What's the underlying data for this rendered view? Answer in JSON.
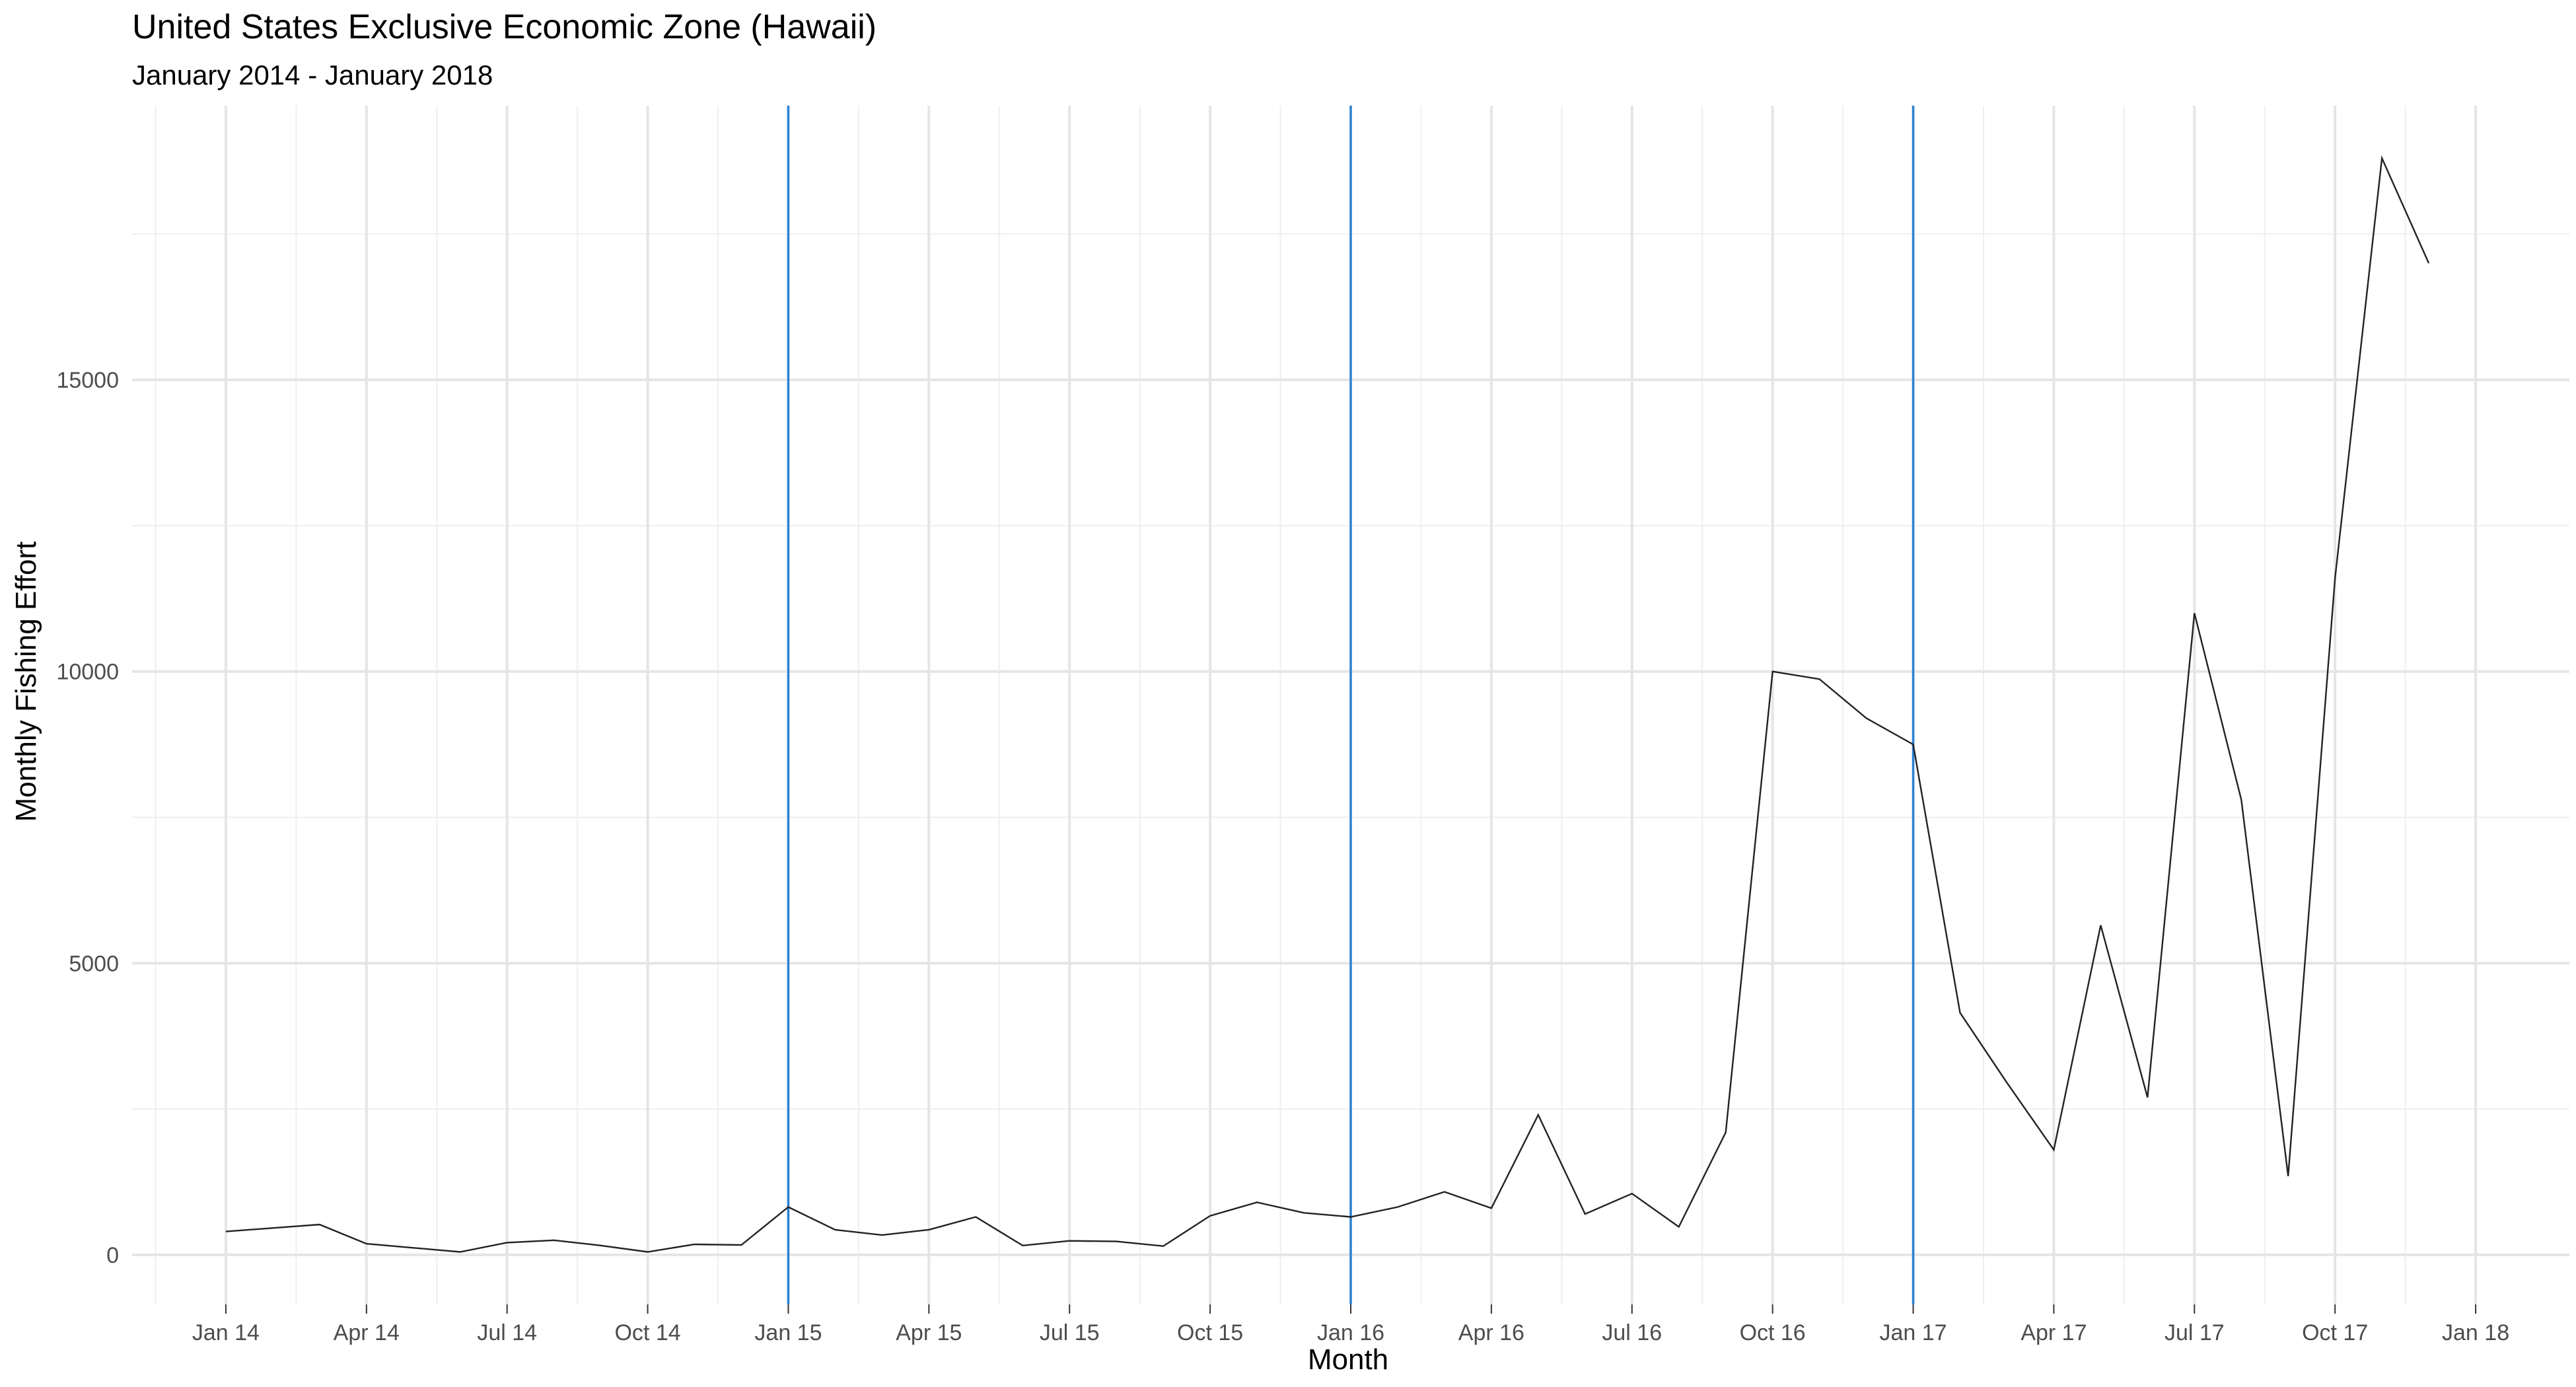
{
  "chart_data": {
    "type": "line",
    "title": "United States Exclusive Economic Zone (Hawaii)",
    "subtitle": "January 2014 - January 2018",
    "xlabel": "Month",
    "ylabel": "Monthly Fishing Effort",
    "x_ticks": [
      "Jan 14",
      "Apr 14",
      "Jul 14",
      "Oct 14",
      "Jan 15",
      "Apr 15",
      "Jul 15",
      "Oct 15",
      "Jan 16",
      "Apr 16",
      "Jul 16",
      "Oct 16",
      "Jan 17",
      "Apr 17",
      "Jul 17",
      "Oct 17",
      "Jan 18"
    ],
    "y_ticks": [
      0,
      5000,
      10000,
      15000
    ],
    "xlim": [
      "2013-11",
      "2018-03"
    ],
    "ylim": [
      -850,
      19700
    ],
    "grid": true,
    "line_color": "#222222",
    "reference_line_color": "#2b83d6",
    "reference_lines": [
      "2015-01",
      "2016-01",
      "2017-01"
    ],
    "series": [
      {
        "x": [
          "2014-01",
          "2014-02",
          "2014-03",
          "2014-04",
          "2014-05",
          "2014-06",
          "2014-07",
          "2014-08",
          "2014-09",
          "2014-10",
          "2014-11",
          "2014-12",
          "2015-01",
          "2015-02",
          "2015-03",
          "2015-04",
          "2015-05",
          "2015-06",
          "2015-07",
          "2015-08",
          "2015-09",
          "2015-10",
          "2015-11",
          "2015-12",
          "2016-01",
          "2016-02",
          "2016-03",
          "2016-04",
          "2016-05",
          "2016-06",
          "2016-07",
          "2016-08",
          "2016-09",
          "2016-10",
          "2016-11",
          "2016-12",
          "2017-01",
          "2017-02",
          "2017-03",
          "2017-04",
          "2017-05",
          "2017-06",
          "2017-07",
          "2017-08",
          "2017-09",
          "2017-10",
          "2017-11",
          "2017-12"
        ],
        "values": [
          400,
          460,
          520,
          190,
          120,
          50,
          210,
          250,
          160,
          50,
          180,
          170,
          820,
          430,
          340,
          430,
          650,
          160,
          240,
          230,
          150,
          670,
          900,
          720,
          650,
          820,
          1080,
          800,
          2400,
          700,
          1050,
          480,
          2100,
          10000,
          9870,
          9200,
          8750,
          4150,
          2950,
          1800,
          5650,
          2700,
          11000,
          7800,
          1350,
          11600,
          18800,
          17000
        ]
      }
    ]
  }
}
